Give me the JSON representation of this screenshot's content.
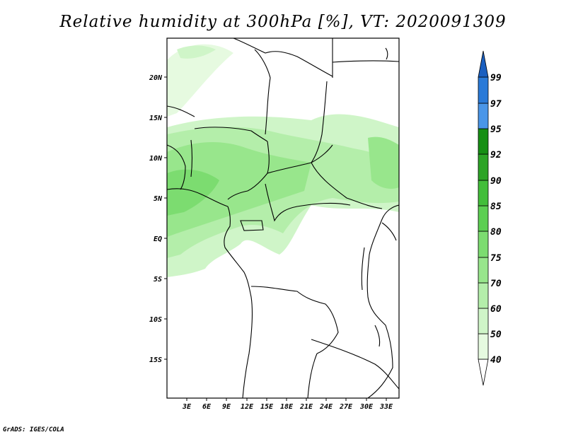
{
  "title": "Relative humidity at 300hPa [%], VT: 2020091309",
  "credit": "GrADS: IGES/COLA",
  "map": {
    "lat_labels": [
      "20N",
      "15N",
      "10N",
      "5N",
      "EQ",
      "5S",
      "10S",
      "15S"
    ],
    "lon_labels": [
      "3E",
      "6E",
      "9E",
      "12E",
      "15E",
      "18E",
      "21E",
      "24E",
      "27E",
      "30E",
      "33E"
    ]
  },
  "colorbar": {
    "levels": [
      "40",
      "50",
      "60",
      "70",
      "75",
      "80",
      "85",
      "90",
      "92",
      "95",
      "97",
      "99"
    ],
    "colors": {
      "c40_50": "#e6fae0",
      "c50_60": "#cff5c8",
      "c60_70": "#b4eeaa",
      "c70_75": "#98e68c",
      "c75_80": "#7cdc70",
      "c80_85": "#5ccf52",
      "c85_90": "#42be3a",
      "c90_92": "#2ca426",
      "c92_95": "#168f14",
      "c95_97": "#4a96e8",
      "c97_99": "#2a7ad8",
      "c99": "#1a5fc0"
    }
  }
}
